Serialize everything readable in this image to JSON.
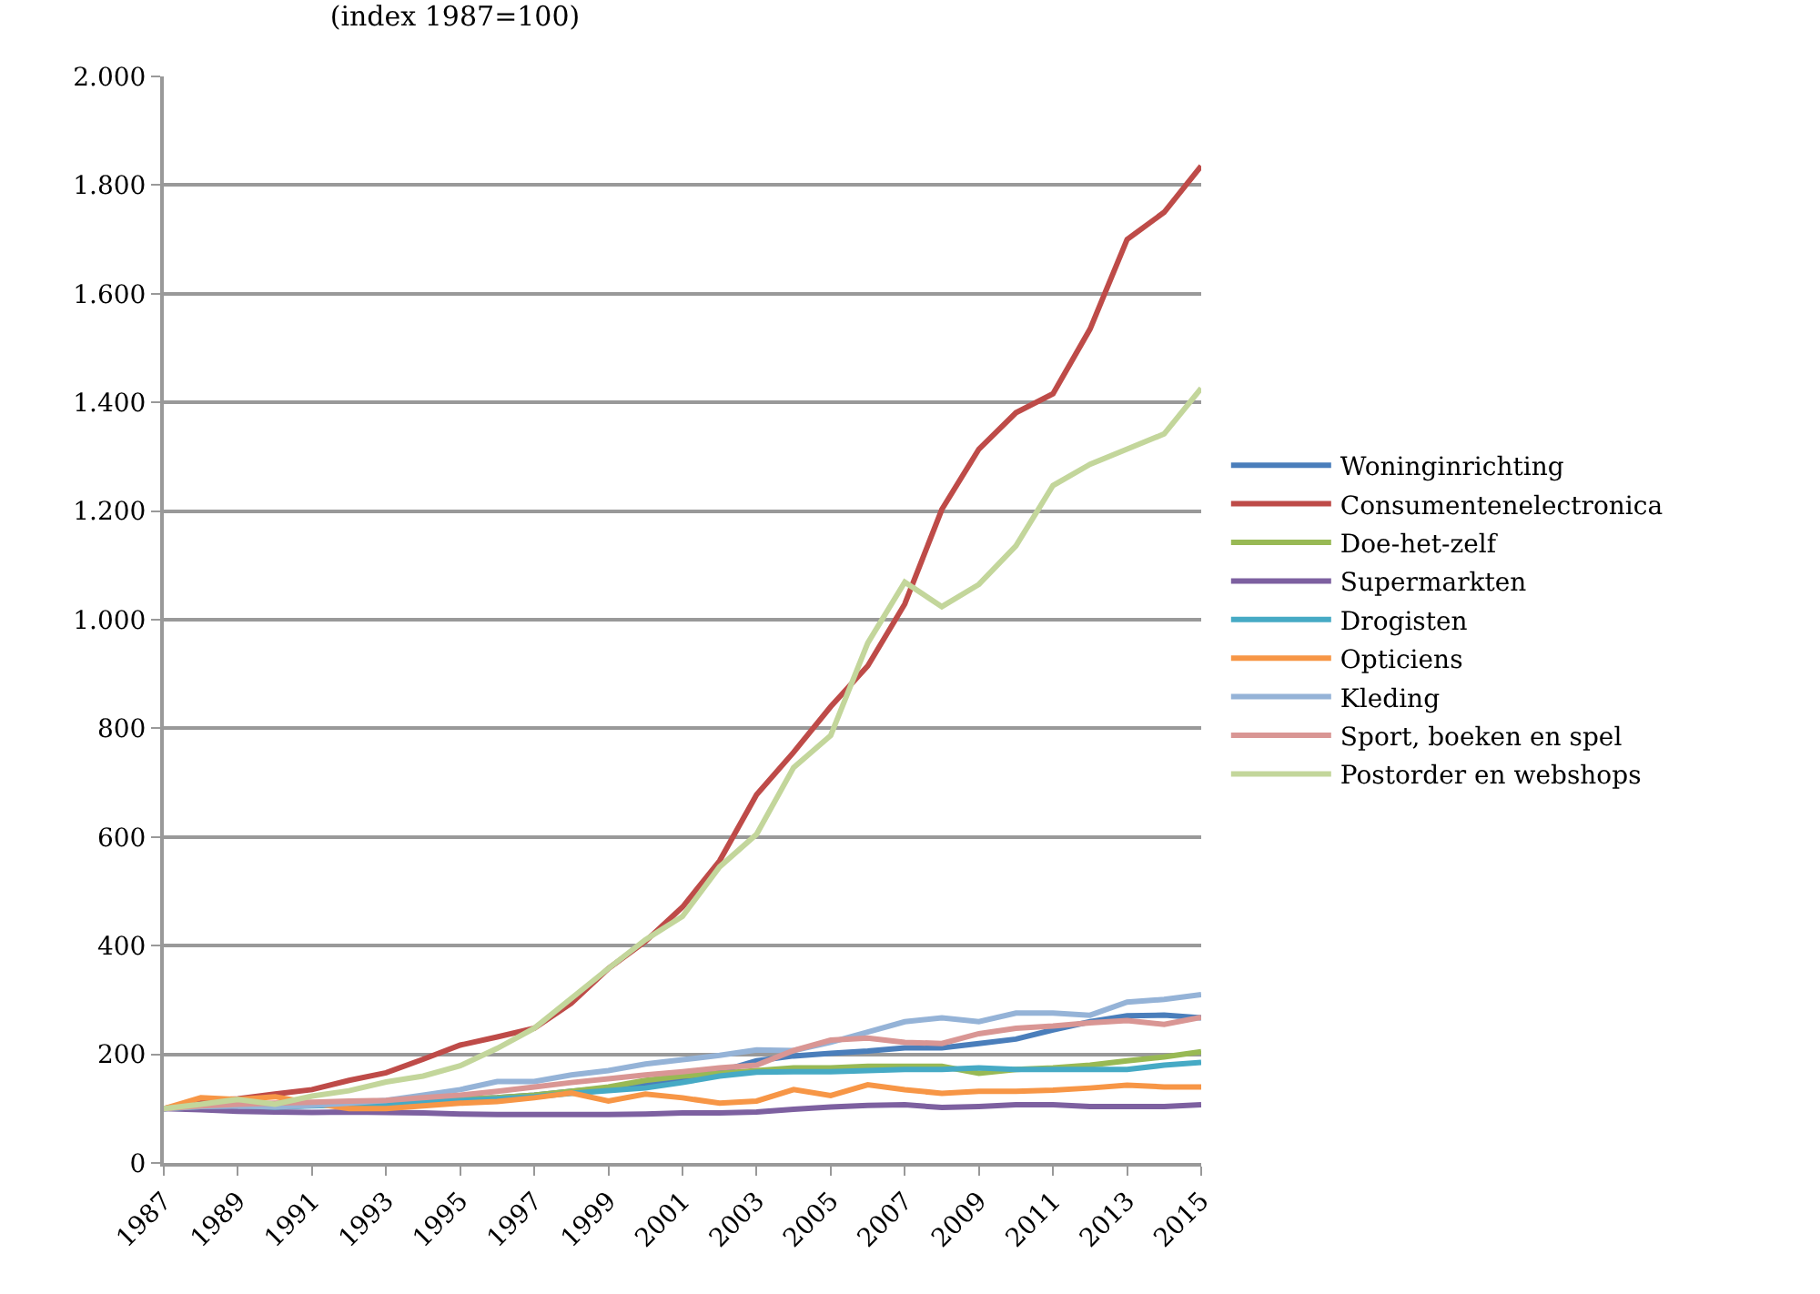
{
  "chart_data": {
    "type": "line",
    "title": "(index 1987=100)",
    "x": [
      1987,
      1988,
      1989,
      1990,
      1991,
      1992,
      1993,
      1994,
      1995,
      1996,
      1997,
      1998,
      1999,
      2000,
      2001,
      2002,
      2003,
      2004,
      2005,
      2006,
      2007,
      2008,
      2009,
      2010,
      2011,
      2012,
      2013,
      2014,
      2015
    ],
    "series": [
      {
        "name": "Woninginrichting",
        "color": "#4a7ebb",
        "values": [
          100,
          103,
          105,
          104,
          106,
          108,
          110,
          113,
          117,
          120,
          125,
          132,
          138,
          145,
          155,
          168,
          188,
          197,
          202,
          206,
          212,
          212,
          220,
          228,
          245,
          260,
          271,
          272,
          267
        ]
      },
      {
        "name": "Consumentenelectronica",
        "color": "#be4b48",
        "values": [
          100,
          114,
          118,
          127,
          135,
          152,
          166,
          191,
          217,
          232,
          248,
          294,
          358,
          408,
          471,
          556,
          678,
          756,
          840,
          915,
          1029,
          1203,
          1314,
          1381,
          1416,
          1535,
          1700,
          1750,
          1835
        ]
      },
      {
        "name": "Doe-het-zelf",
        "color": "#98b954",
        "values": [
          100,
          105,
          106,
          104,
          106,
          108,
          110,
          113,
          117,
          120,
          125,
          132,
          140,
          152,
          160,
          165,
          170,
          175,
          175,
          178,
          178,
          178,
          165,
          172,
          175,
          180,
          188,
          195,
          205
        ]
      },
      {
        "name": "Supermarkten",
        "color": "#7d60a0",
        "values": [
          100,
          98,
          95,
          94,
          93,
          94,
          93,
          92,
          90,
          89,
          89,
          89,
          89,
          90,
          92,
          92,
          94,
          99,
          103,
          106,
          107,
          102,
          104,
          107,
          107,
          104,
          104,
          104,
          107
        ]
      },
      {
        "name": "Drogisten",
        "color": "#46aac5",
        "values": [
          100,
          104,
          106,
          103,
          105,
          107,
          109,
          112,
          115,
          118,
          122,
          128,
          133,
          138,
          148,
          160,
          167,
          168,
          168,
          170,
          172,
          172,
          175,
          172,
          172,
          172,
          172,
          180,
          185
        ]
      },
      {
        "name": "Opticiens",
        "color": "#f79646",
        "values": [
          100,
          120,
          117,
          122,
          110,
          100,
          100,
          105,
          110,
          113,
          120,
          129,
          114,
          127,
          120,
          110,
          114,
          135,
          124,
          144,
          135,
          128,
          132,
          132,
          134,
          138,
          143,
          140,
          140
        ]
      },
      {
        "name": "Kleding",
        "color": "#95b3d7",
        "values": [
          100,
          104,
          105,
          103,
          106,
          110,
          115,
          125,
          135,
          150,
          150,
          162,
          170,
          182,
          190,
          198,
          208,
          207,
          222,
          241,
          260,
          267,
          260,
          276,
          276,
          272,
          296,
          301,
          310
        ]
      },
      {
        "name": "Sport, boeken en spel",
        "color": "#d99694",
        "values": [
          100,
          105,
          108,
          110,
          112,
          114,
          115,
          120,
          125,
          132,
          140,
          148,
          155,
          162,
          168,
          175,
          180,
          207,
          226,
          230,
          222,
          220,
          238,
          248,
          252,
          258,
          262,
          255,
          268
        ]
      },
      {
        "name": "Postorder en webshops",
        "color": "#c3d69b",
        "values": [
          100,
          108,
          117,
          108,
          123,
          133,
          149,
          160,
          179,
          211,
          248,
          303,
          358,
          411,
          454,
          545,
          605,
          728,
          787,
          957,
          1069,
          1024,
          1065,
          1136,
          1247,
          1286,
          1314,
          1342,
          1426
        ]
      }
    ],
    "xlim": [
      1987,
      2015
    ],
    "xticks": [
      1987,
      1989,
      1991,
      1993,
      1995,
      1997,
      1999,
      2001,
      2003,
      2005,
      2007,
      2009,
      2011,
      2013,
      2015
    ],
    "ylim": [
      0,
      2000
    ],
    "yticks": [
      0,
      200,
      400,
      600,
      800,
      {
        "value": 1000,
        "label": "1.000"
      },
      {
        "value": 1200,
        "label": "1.200"
      },
      {
        "value": 1400,
        "label": "1.400"
      },
      {
        "value": 1600,
        "label": "1.600"
      },
      {
        "value": 1800,
        "label": "1.800"
      },
      {
        "value": 2000,
        "label": "2.000"
      }
    ],
    "grid": "y",
    "legend": "right",
    "marker": "none",
    "line_style": "solid"
  }
}
